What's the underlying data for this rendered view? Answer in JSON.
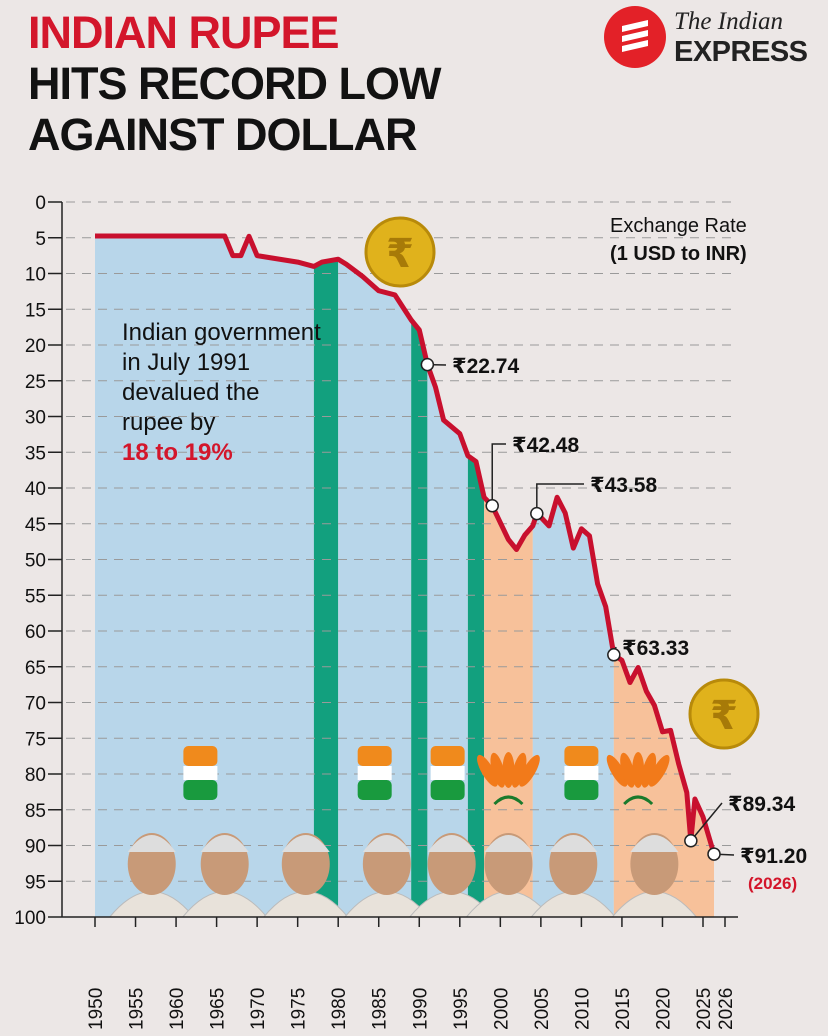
{
  "header": {
    "title_line1": "INDIAN RUPEE",
    "title_line2": "HITS RECORD LOW",
    "title_line3": "AGAINST DOLLAR"
  },
  "logo": {
    "line1": "The Indian",
    "line2": "EXPRESS",
    "icon": "indian-express-logo-icon"
  },
  "legend": {
    "line1": "Exchange Rate",
    "line2": "(1 USD to INR)"
  },
  "note": {
    "text": "Indian government in July 1991 devalued the rupee by",
    "highlight": "18 to 19%"
  },
  "callouts": [
    {
      "label": "₹22.74",
      "year": 1991,
      "value": 22.74
    },
    {
      "label": "₹42.48",
      "year": 1999,
      "value": 42.48
    },
    {
      "label": "₹43.58",
      "year": 2004.5,
      "value": 43.58
    },
    {
      "label": "₹63.33",
      "year": 2014,
      "value": 63.33
    },
    {
      "label": "₹89.34",
      "year": 2023.5,
      "value": 89.34
    },
    {
      "label": "₹91.20",
      "year": 2025.5,
      "value": 91.2
    }
  ],
  "callout_year_label": "(2026)",
  "colors": {
    "line": "#c8102e",
    "congress": "#b8d6ea",
    "bjp": "#f7c19a",
    "other": "#12a07e",
    "accent": "#d3162b"
  },
  "icons": [
    "rupee-coin-icon",
    "congress-hand-icon",
    "bjp-lotus-icon",
    "leader-portrait-icon"
  ],
  "chart_data": {
    "type": "line",
    "title": "INDIAN RUPEE HITS RECORD LOW AGAINST DOLLAR",
    "ylabel": "Exchange Rate (1 USD to INR)",
    "y_inverted": true,
    "ylim": [
      0,
      100
    ],
    "y_ticks": [
      0,
      5,
      10,
      15,
      20,
      25,
      30,
      35,
      40,
      45,
      50,
      55,
      60,
      65,
      70,
      75,
      80,
      85,
      90,
      95,
      100
    ],
    "x_ticks": [
      "1950",
      "1955",
      "1960",
      "1965",
      "1970",
      "1975",
      "1980",
      "1985",
      "1990",
      "1995",
      "2000",
      "2005",
      "2010",
      "2015",
      "2020",
      "2025",
      "2026"
    ],
    "grid": true,
    "series": [
      {
        "x": [
          1950,
          1955,
          1960,
          1965,
          1966,
          1967,
          1968,
          1969,
          1970,
          1975,
          1977,
          1978,
          1980,
          1981,
          1983,
          1985,
          1987,
          1989,
          1990,
          1991,
          1992,
          1993,
          1995,
          1996,
          1997,
          1998,
          1999,
          2001,
          2002,
          2003,
          2004,
          2004.5,
          2005,
          2006,
          2007,
          2008,
          2009,
          2010,
          2011,
          2012,
          2013,
          2014,
          2015,
          2016,
          2017,
          2018,
          2019,
          2020,
          2021,
          2022,
          2023,
          2023.5,
          2024,
          2025,
          2025.5
        ],
        "values": [
          4.76,
          4.76,
          4.76,
          4.76,
          4.76,
          7.5,
          7.5,
          4.8,
          7.5,
          8.4,
          9.0,
          8.4,
          8.0,
          8.7,
          10.4,
          12.4,
          13.0,
          16.5,
          17.9,
          22.74,
          25.9,
          30.5,
          32.4,
          35.5,
          36.3,
          41.3,
          42.48,
          47.2,
          48.6,
          46.6,
          45.3,
          43.58,
          44.1,
          45.3,
          41.3,
          43.5,
          48.4,
          45.7,
          46.7,
          53.4,
          56.6,
          63.33,
          64.1,
          67.2,
          65.1,
          68.4,
          70.4,
          74.1,
          73.9,
          78.6,
          82.6,
          89.34,
          83.5,
          86.0,
          91.2
        ]
      }
    ],
    "eras": [
      {
        "from": 1950,
        "to": 1977,
        "party": "congress",
        "icon": "congress-hand-icon"
      },
      {
        "from": 1977,
        "to": 1980,
        "party": "other"
      },
      {
        "from": 1980,
        "to": 1989,
        "party": "congress",
        "icon": "congress-hand-icon"
      },
      {
        "from": 1989,
        "to": 1991,
        "party": "other"
      },
      {
        "from": 1991,
        "to": 1996,
        "party": "congress",
        "icon": "congress-hand-icon"
      },
      {
        "from": 1996,
        "to": 1998,
        "party": "other"
      },
      {
        "from": 1998,
        "to": 2004,
        "party": "bjp",
        "icon": "bjp-lotus-icon"
      },
      {
        "from": 2004,
        "to": 2014,
        "party": "congress",
        "icon": "congress-hand-icon"
      },
      {
        "from": 2014,
        "to": 2026,
        "party": "bjp",
        "icon": "bjp-lotus-icon"
      }
    ]
  }
}
